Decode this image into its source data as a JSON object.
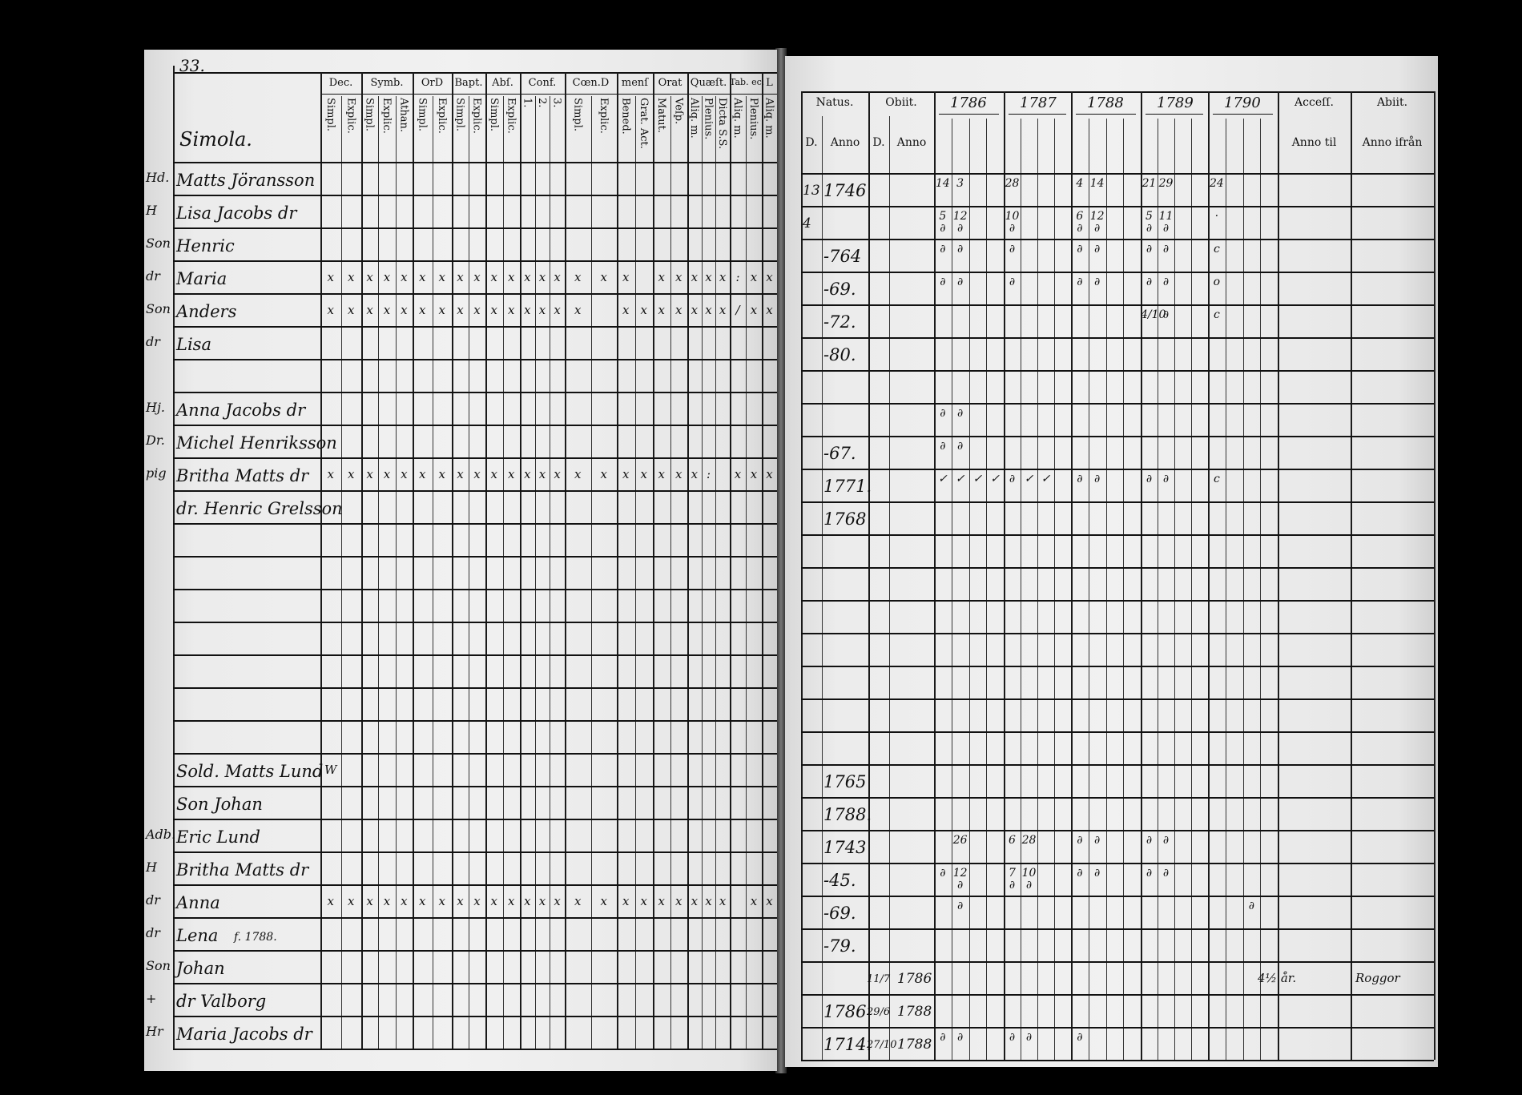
{
  "left_page": {
    "page_number": "33.",
    "farm_name": "Simola.",
    "groups": [
      {
        "label": "Dec.",
        "subs": [
          "Simpl.",
          "Explic."
        ]
      },
      {
        "label": "Symb.",
        "subs": [
          "Simpl.",
          "Explic.",
          "Athan."
        ]
      },
      {
        "label": "OrD",
        "subs": [
          "Simpl.",
          "Explic."
        ]
      },
      {
        "label": "Bapt.",
        "subs": [
          "Simpl.",
          "Explic."
        ]
      },
      {
        "label": "Abſ.",
        "subs": [
          "Simpl.",
          "Explic."
        ]
      },
      {
        "label": "Conf.",
        "subs": [
          "1.",
          "2.",
          "3."
        ]
      },
      {
        "label": "Cœn.D",
        "subs": [
          "Simpl.",
          "Explic."
        ]
      },
      {
        "label": "menſ",
        "subs": [
          "Bened.",
          "Grat. Act."
        ]
      },
      {
        "label": "Orat",
        "subs": [
          "Matut.",
          "Veſp."
        ]
      },
      {
        "label": "Quæſt.",
        "subs": [
          "Aliq. m.",
          "Plenius.",
          "Dicta S.S."
        ]
      },
      {
        "label": "Tab. ec.",
        "subs": [
          "Aliq. m.",
          "Plenius."
        ]
      },
      {
        "label": "L",
        "subs": [
          "Aliq. m."
        ]
      }
    ],
    "rows": [
      {
        "margin": "Hd.",
        "name": "Matts Jöransson"
      },
      {
        "margin": "H",
        "name": "Lisa Jacobs dr"
      },
      {
        "margin": "Son",
        "name": "Henric"
      },
      {
        "margin": "dr",
        "name": "Maria",
        "marks": {
          "0": "x",
          "1": "x",
          "2": "x",
          "3": "x",
          "4": "x",
          "5": "x",
          "6": "x",
          "7": "x",
          "8": "x",
          "9": "x",
          "10": "x",
          "11": "x",
          "12": "x",
          "13": "x",
          "14": "x",
          "15": "x",
          "16": "x",
          "18": "x",
          "19": "x",
          "20": "x",
          "21": "x",
          "22": "x",
          "23": ":",
          "24": "x",
          "25": "x"
        }
      },
      {
        "margin": "Son",
        "name": "Anders",
        "marks": {
          "0": "x",
          "1": "x",
          "2": "x",
          "3": "x",
          "4": "x",
          "5": "x",
          "6": "x",
          "7": "x",
          "8": "x",
          "9": "x",
          "10": "x",
          "11": "x",
          "12": "x",
          "13": "x",
          "14": "x",
          "16": "x",
          "17": "x",
          "18": "x",
          "19": "x",
          "20": "x",
          "21": "x",
          "22": "x",
          "23": "/",
          "24": "x",
          "25": "x"
        }
      },
      {
        "margin": "dr",
        "name": "Lisa"
      },
      {
        "margin": "",
        "name": ""
      },
      {
        "margin": "Hj.",
        "name": "Anna Jacobs dr"
      },
      {
        "margin": "Dr.",
        "name": "Michel Henriksson"
      },
      {
        "margin": "pig",
        "name": "Britha Matts dr",
        "marks": {
          "0": "x",
          "1": "x",
          "2": "x",
          "3": "x",
          "4": "x",
          "5": "x",
          "6": "x",
          "7": "x",
          "8": "x",
          "9": "x",
          "10": "x",
          "11": "x",
          "12": "x",
          "13": "x",
          "14": "x",
          "15": "x",
          "16": "x",
          "17": "x",
          "18": "x",
          "19": "x",
          "20": "x",
          "21": ":",
          "23": "x",
          "24": "x",
          "25": "x"
        }
      },
      {
        "margin": "",
        "name": "dr. Henric Grelsson"
      },
      {
        "margin": "",
        "name": ""
      },
      {
        "margin": "",
        "name": ""
      },
      {
        "margin": "",
        "name": ""
      },
      {
        "margin": "",
        "name": ""
      },
      {
        "margin": "",
        "name": ""
      },
      {
        "margin": "",
        "name": ""
      },
      {
        "margin": "",
        "name": ""
      },
      {
        "margin": "",
        "name": "Sold. Matts Lund",
        "marks": {
          "0": "W"
        }
      },
      {
        "margin": "",
        "name": "Son Johan"
      },
      {
        "margin": "Adb.",
        "name": "Eric Lund"
      },
      {
        "margin": "H",
        "name": "Britha Matts dr"
      },
      {
        "margin": "dr",
        "name": "Anna",
        "marks": {
          "0": "x",
          "1": "x",
          "2": "x",
          "3": "x",
          "4": "x",
          "5": "x",
          "6": "x",
          "7": "x",
          "8": "x",
          "9": "x",
          "10": "x",
          "11": "x",
          "12": "x",
          "13": "x",
          "14": "x",
          "15": "x",
          "16": "x",
          "17": "x",
          "18": "x",
          "19": "x",
          "20": "x",
          "21": "x",
          "22": "x",
          "24": "x",
          "25": "x"
        }
      },
      {
        "margin": "dr",
        "name": "Lena",
        "note": "f. 1788."
      },
      {
        "margin": "Son",
        "name": "Johan"
      },
      {
        "margin": "+",
        "name": "dr Valborg"
      },
      {
        "margin": "Hr",
        "name": "Maria Jacobs dr"
      }
    ]
  },
  "right_page": {
    "natus": {
      "label": "Natus.",
      "d": "D.",
      "anno": "Anno"
    },
    "obiit": {
      "label": "Obiit.",
      "d": "D.",
      "anno": "Anno"
    },
    "years": [
      "1786",
      "1787",
      "1788",
      "1789",
      "1790"
    ],
    "accessit": {
      "label": "Acceſſ.",
      "sub": "Anno til"
    },
    "abitus": {
      "label": "Abiit.",
      "sub": "Anno ifrån"
    },
    "rows": [
      {
        "nd": "13",
        "na": "1746",
        "cells": {
          "0": "14",
          "1": "3",
          "4": "28",
          "8": "4",
          "9": "14",
          "12": "21",
          "13": "29",
          "16": "24"
        }
      },
      {
        "nd": "4",
        "cells": {
          "0": "5\n∂",
          "1": "12\n∂",
          "4": "10\n∂",
          "8": "6\n∂",
          "9": "12\n∂",
          "12": "5\n∂",
          "13": "11\n∂",
          "16": "·"
        }
      },
      {
        "na": "-764",
        "cells": {
          "0": "∂",
          "1": "∂",
          "4": "∂",
          "8": "∂",
          "9": "∂",
          "12": "∂",
          "13": "∂",
          "16": "c"
        }
      },
      {
        "na": "-69.",
        "cells": {
          "0": "∂",
          "1": "∂",
          "4": "∂",
          "8": "∂",
          "9": "∂",
          "12": "∂",
          "13": "∂",
          "16": "o"
        }
      },
      {
        "na": "-72.",
        "cells": {
          "12": "4/10",
          "13": "∂",
          "16": "c"
        }
      },
      {
        "na": "-80."
      },
      {},
      {
        "cells": {
          "0": "∂",
          "1": "∂"
        }
      },
      {
        "na": "-67.",
        "cells": {
          "0": "∂",
          "1": "∂"
        }
      },
      {
        "na": "1771.",
        "cells": {
          "0": "✓",
          "1": "✓",
          "2": "✓",
          "3": "✓",
          "4": "∂",
          "5": "✓",
          "6": "✓",
          "8": "∂",
          "9": "∂",
          "12": "∂",
          "13": "∂",
          "16": "c"
        }
      },
      {
        "na": "1768"
      },
      {},
      {},
      {},
      {},
      {},
      {},
      {},
      {
        "na": "1765"
      },
      {
        "na": "1788."
      },
      {
        "na": "1743",
        "cells": {
          "1": "26",
          "4": "6",
          "5": "28",
          "8": "∂",
          "9": "∂",
          "12": "∂",
          "13": "∂"
        }
      },
      {
        "na": "-45.",
        "cells": {
          "0": "∂",
          "1": "12\n∂",
          "4": "7\n∂",
          "5": "10\n∂",
          "8": "∂",
          "9": "∂",
          "12": "∂",
          "13": "∂"
        }
      },
      {
        "na": "-69.",
        "cells": {
          "1": "∂",
          "18": "∂"
        }
      },
      {
        "na": "-79."
      },
      {
        "od": "11/7",
        "oa": "1786",
        "acc": "4½ år.",
        "abi": "Roggor"
      },
      {
        "na": "1786",
        "od": "29/6",
        "oa": "1788"
      },
      {
        "na": "1714.",
        "od": "27/10",
        "oa": "1788",
        "cells": {
          "0": "∂",
          "1": "∂",
          "4": "∂",
          "5": "∂",
          "8": "∂"
        }
      }
    ]
  }
}
